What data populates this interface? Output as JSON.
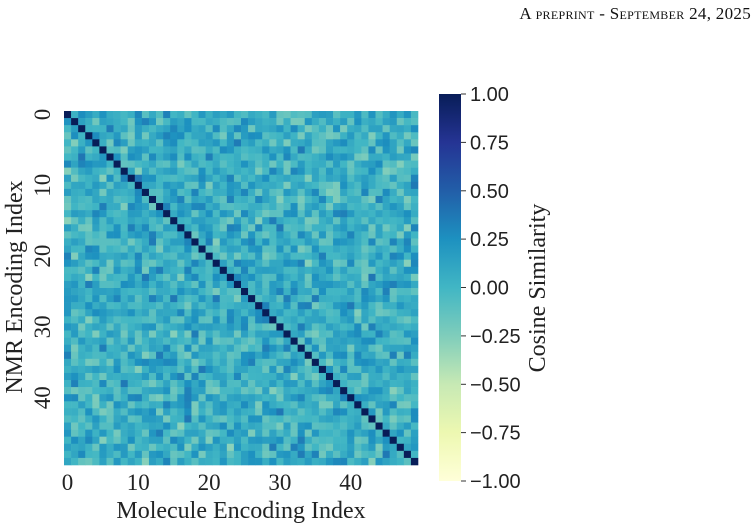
{
  "header": {
    "text": "A preprint - September 24, 2025"
  },
  "chart_data": {
    "type": "heatmap",
    "n_rows": 50,
    "n_cols": 50,
    "diagonal_value": 1.0,
    "off_diagonal_typical_range": [
      -0.3,
      0.4
    ],
    "x_ticks": [
      "0",
      "10",
      "20",
      "30",
      "40"
    ],
    "y_ticks": [
      "0",
      "10",
      "20",
      "30",
      "40"
    ],
    "xlabel": "Molecule Encoding Index",
    "ylabel": "NMR Encoding Index",
    "colorbar": {
      "label": "Cosine Similarity",
      "min": -1.0,
      "max": 1.0,
      "ticks": [
        "1.00",
        "0.75",
        "0.50",
        "0.25",
        "0.00",
        "−0.25",
        "−0.50",
        "−0.75",
        "−1.00"
      ],
      "colormap": "YlGnBu"
    }
  }
}
